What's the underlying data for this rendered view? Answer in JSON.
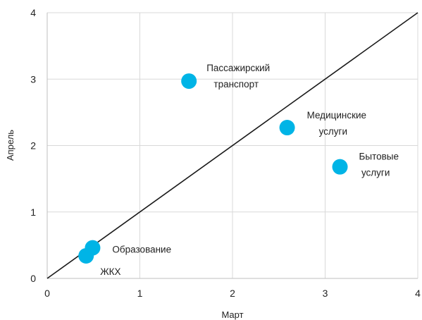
{
  "chart_data": {
    "type": "scatter",
    "title": "",
    "xlabel": "Март",
    "ylabel": "Апрель",
    "xlim": [
      0,
      4
    ],
    "ylim": [
      0,
      4
    ],
    "xticks": [
      0,
      1,
      2,
      3,
      4
    ],
    "yticks": [
      0,
      1,
      2,
      3,
      4
    ],
    "grid": true,
    "legend": "none",
    "reference_line": {
      "type": "y=x",
      "color": "#1a1a1a"
    },
    "point_color": "#00b4e6",
    "points": [
      {
        "label_lines": [
          "Пассажирский",
          "транспорт"
        ],
        "x": 1.53,
        "y": 2.97
      },
      {
        "label_lines": [
          "Медицинские",
          "услуги"
        ],
        "x": 2.59,
        "y": 2.27
      },
      {
        "label_lines": [
          "Бытовые",
          "услуги"
        ],
        "x": 3.16,
        "y": 1.68
      },
      {
        "label_lines": [
          "Образование"
        ],
        "x": 0.49,
        "y": 0.46
      },
      {
        "label_lines": [
          "ЖКХ"
        ],
        "x": 0.42,
        "y": 0.34
      }
    ]
  }
}
